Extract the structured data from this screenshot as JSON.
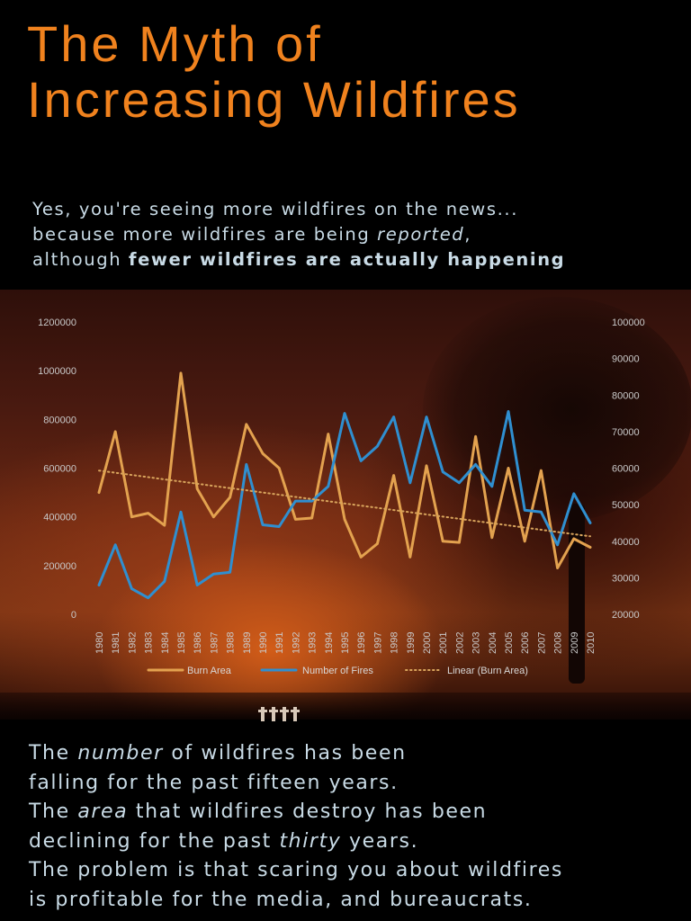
{
  "title": {
    "line1": "The Myth of",
    "line2": "Increasing Wildfires"
  },
  "intro": {
    "line1": "Yes, you're seeing more wildfires on the news...",
    "line2_before": "because more wildfires are being ",
    "line2_em": "reported",
    "line2_after": ",",
    "line3_before": "although ",
    "line3_strong": "fewer wildfires are actually happening"
  },
  "outro": {
    "l1_before": "The ",
    "l1_em": "number",
    "l1_after": " of wildfires has been",
    "l2": "falling for the past fifteen years.",
    "l3_before": "The ",
    "l3_em": "area",
    "l3_after": " that wildfires destroy has been",
    "l4_before": "declining for the past ",
    "l4_em": "thirty",
    "l4_after": " years.",
    "l5": "The problem is that scaring you about wildfires",
    "l6": "is profitable for the media, and bureaucrats."
  },
  "colors": {
    "title": "#f0821e",
    "text": "#c9dbe6",
    "burn_area": "#e3a24f",
    "number_of_fires": "#2f8fd0",
    "linear": "#d8a45c"
  },
  "chart_data": {
    "type": "line",
    "x": [
      1980,
      1981,
      1982,
      1983,
      1984,
      1985,
      1986,
      1987,
      1988,
      1989,
      1990,
      1991,
      1992,
      1993,
      1994,
      1995,
      1996,
      1997,
      1998,
      1999,
      2000,
      2001,
      2002,
      2003,
      2004,
      2005,
      2006,
      2007,
      2008,
      2009,
      2010
    ],
    "x_tick_labels": [
      "1980",
      "1981",
      "1982",
      "1983",
      "1984",
      "1985",
      "1986",
      "1987",
      "1988",
      "1989",
      "1990",
      "1991",
      "1992",
      "1993",
      "1994",
      "1995",
      "1996",
      "1997",
      "1998",
      "1999",
      "2000",
      "2001",
      "2002",
      "2003",
      "2004",
      "2005",
      "2006",
      "2007",
      "2008",
      "2009",
      "2010"
    ],
    "left_axis": {
      "ylim": [
        0,
        1200000
      ],
      "ticks": [
        "0",
        "200000",
        "400000",
        "600000",
        "800000",
        "1000000",
        "1200000"
      ]
    },
    "right_axis": {
      "ylim": [
        20000,
        100000
      ],
      "ticks": [
        "20000",
        "30000",
        "40000",
        "50000",
        "60000",
        "70000",
        "80000",
        "90000",
        "100000"
      ]
    },
    "series": [
      {
        "name": "Burn Area",
        "axis": "left",
        "color": "#e3a24f",
        "values": [
          500000,
          750000,
          400000,
          415000,
          365000,
          990000,
          515000,
          400000,
          480000,
          780000,
          660000,
          600000,
          390000,
          395000,
          740000,
          390000,
          235000,
          290000,
          570000,
          235000,
          610000,
          300000,
          295000,
          730000,
          315000,
          600000,
          300000,
          590000,
          190000,
          310000,
          275000
        ]
      },
      {
        "name": "Number of Fires",
        "axis": "right",
        "color": "#2f8fd0",
        "values": [
          28000,
          39000,
          27000,
          24500,
          29000,
          48000,
          28000,
          31000,
          31500,
          61000,
          44500,
          44000,
          51000,
          51000,
          55000,
          75000,
          62000,
          66000,
          74000,
          56000,
          74000,
          59000,
          56000,
          61000,
          55000,
          75500,
          48500,
          48000,
          39000,
          53000,
          45000
        ]
      },
      {
        "name": "Linear (Burn Area)",
        "axis": "left",
        "color": "#d8a45c",
        "style": "dotted",
        "values": [
          590000,
          581000,
          572000,
          563000,
          554000,
          545000,
          536000,
          527000,
          518000,
          509000,
          500000,
          491000,
          482000,
          473000,
          464000,
          455000,
          446000,
          437000,
          428000,
          419000,
          410000,
          401000,
          392000,
          383000,
          374000,
          365000,
          356000,
          347000,
          338000,
          329000,
          320000
        ]
      }
    ],
    "legend_position": "bottom",
    "grid": false
  }
}
